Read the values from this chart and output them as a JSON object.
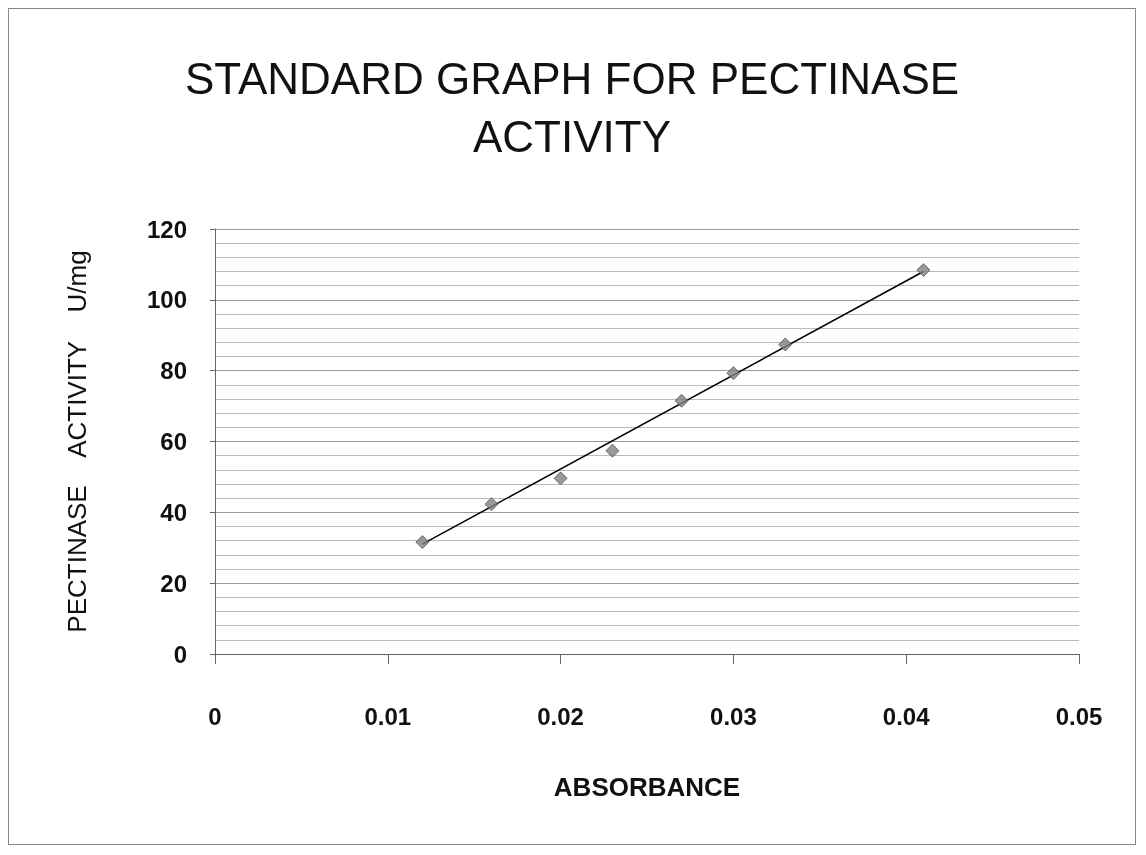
{
  "chart_data": {
    "type": "scatter",
    "title": "STANDARD GRAPH FOR PECTINASE\nACTIVITY",
    "xlabel": "ABSORBANCE",
    "ylabel": "PECTINASE    ACTIVITY    U/mg",
    "series": [
      {
        "color": "#7f7f7f",
        "marker": "diamond",
        "x": [
          0.012,
          0.016,
          0.02,
          0.023,
          0.027,
          0.03,
          0.033,
          0.041
        ],
        "values": [
          31.6,
          42.3,
          49.6,
          57.4,
          71.5,
          79.3,
          87.4,
          108.4
        ]
      },
      {
        "type": "line",
        "color": "#000000",
        "marker": "none",
        "x": [
          0.012,
          0.041
        ],
        "values": [
          31,
          108
        ]
      }
    ],
    "xlim": [
      0,
      0.05
    ],
    "xticks": [
      0,
      0.01,
      0.02,
      0.03,
      0.04,
      0.05
    ],
    "ylim": [
      0,
      120
    ],
    "yticks": [
      0,
      20,
      40,
      60,
      80,
      100,
      120
    ],
    "grid": "y"
  }
}
